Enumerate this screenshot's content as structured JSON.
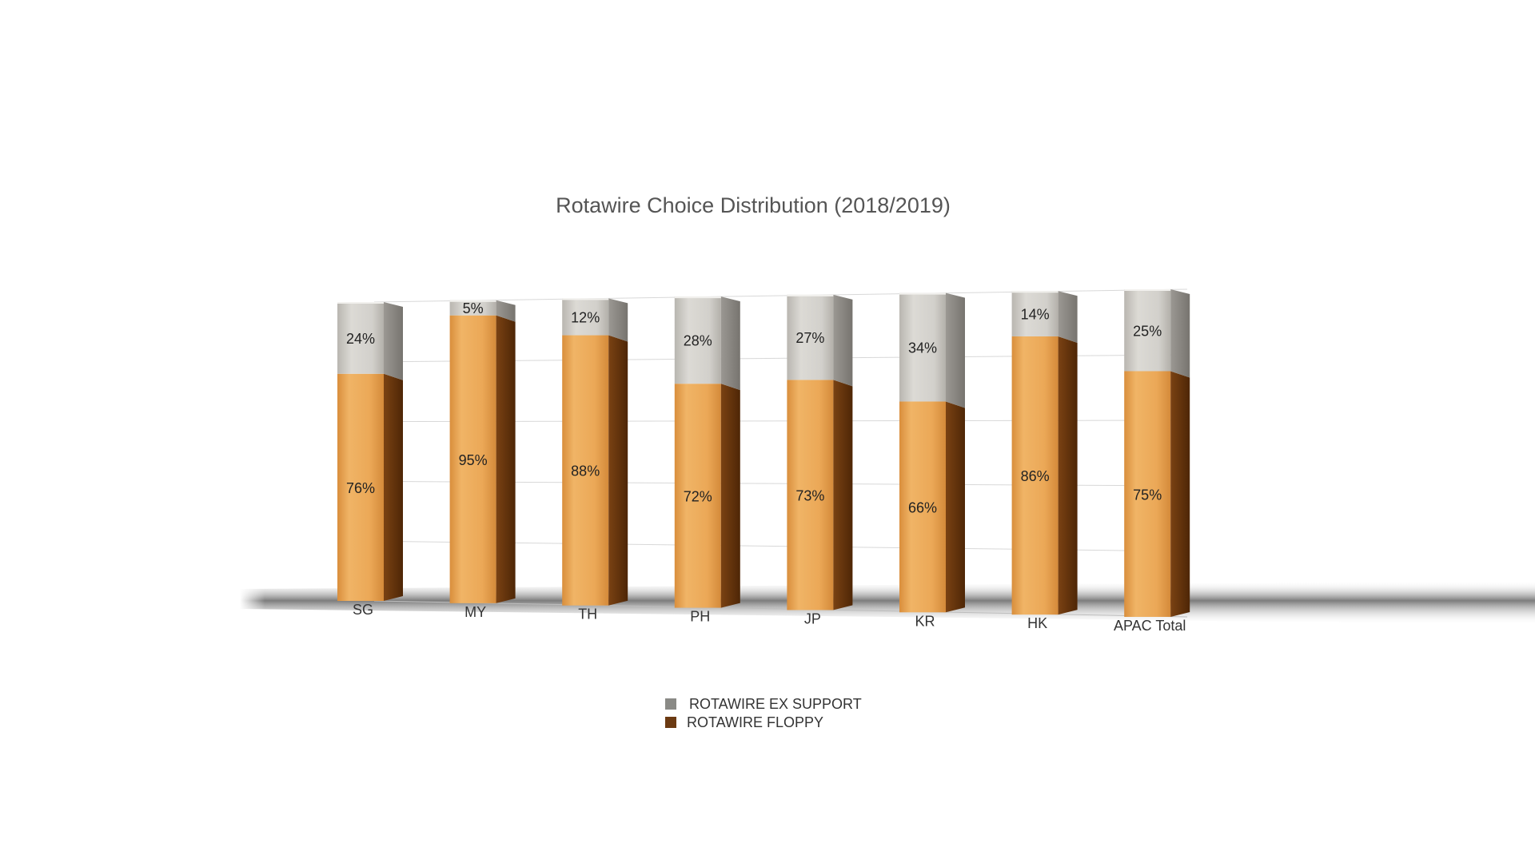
{
  "chart_data": {
    "type": "bar",
    "stacked": true,
    "percent": true,
    "title": "Rotawire Choice Distribution (2018/2019)",
    "categories": [
      "SG",
      "MY",
      "TH",
      "PH",
      "JP",
      "KR",
      "HK",
      "APAC Total"
    ],
    "series": [
      {
        "name": "ROTAWIRE FLOPPY",
        "values": [
          76,
          95,
          88,
          72,
          73,
          66,
          86,
          75
        ],
        "labels": [
          "76%",
          "95%",
          "88%",
          "72%",
          "73%",
          "66%",
          "86%",
          "75%"
        ],
        "color": "#e9a552"
      },
      {
        "name": "ROTAWIRE EX SUPPORT",
        "values": [
          24,
          5,
          12,
          28,
          27,
          34,
          14,
          25
        ],
        "labels": [
          "24%",
          "5%",
          "12%",
          "28%",
          "27%",
          "34%",
          "14%",
          "25%"
        ],
        "color": "#c8c5bf"
      }
    ],
    "ylim": [
      0,
      100
    ],
    "grid": true,
    "legend_position": "bottom-center",
    "legend": [
      {
        "name": "ROTAWIRE EX SUPPORT",
        "swatch_color": "#8a8a86"
      },
      {
        "name": "ROTAWIRE FLOPPY",
        "swatch_color": "#6b3a12"
      }
    ]
  }
}
